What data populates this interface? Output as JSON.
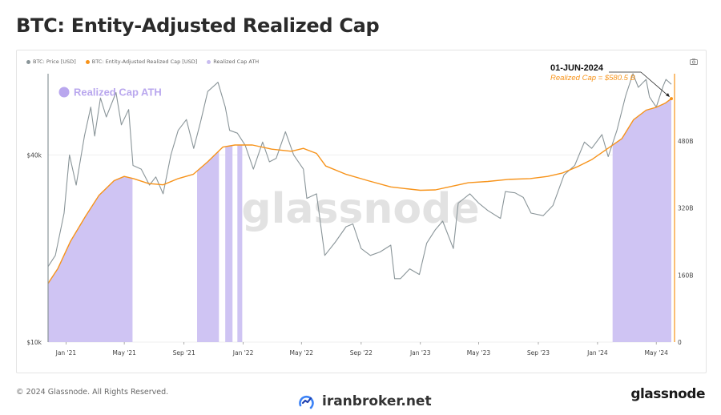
{
  "header": {
    "title": "BTC: Entity-Adjusted Realized Cap"
  },
  "chart_data": {
    "type": "line",
    "title": "BTC: Entity-Adjusted Realized Cap",
    "legend": [
      {
        "name": "BTC: Price [USD]",
        "color": "#8a9599"
      },
      {
        "name": "BTC: Entity-Adjusted Realized Cap [USD]",
        "color": "#f7931a"
      },
      {
        "name": "Realized Cap ATH",
        "color": "#c9bdf0"
      }
    ],
    "x_ticks": [
      "Jan '21",
      "May '21",
      "Sep '21",
      "Jan '22",
      "May '22",
      "Sep '22",
      "Jan '23",
      "May '23",
      "Sep '23",
      "Jan '24",
      "May '24"
    ],
    "x_range": [
      "2020-11-25",
      "2024-06-01"
    ],
    "left_axis": {
      "scale": "log",
      "range": [
        10000,
        73000
      ],
      "ticks": [
        {
          "value": 40000,
          "label": "$40k"
        },
        {
          "value": 10000,
          "label": "$10k"
        }
      ]
    },
    "right_axis": {
      "range_billion": [
        0,
        640
      ],
      "ticks": [
        {
          "value": 480,
          "label": "480B"
        },
        {
          "value": 320,
          "label": "320B"
        },
        {
          "value": 160,
          "label": "160B"
        },
        {
          "value": 0,
          "label": "0"
        }
      ]
    },
    "series": [
      {
        "name": "BTC: Price [USD]",
        "x": [
          "2020-11-25",
          "2020-12-10",
          "2020-12-28",
          "2021-01-08",
          "2021-01-22",
          "2021-02-08",
          "2021-02-21",
          "2021-03-01",
          "2021-03-13",
          "2021-03-25",
          "2021-04-14",
          "2021-04-25",
          "2021-05-10",
          "2021-05-19",
          "2021-06-05",
          "2021-06-22",
          "2021-07-05",
          "2021-07-20",
          "2021-08-05",
          "2021-08-20",
          "2021-09-06",
          "2021-09-21",
          "2021-10-05",
          "2021-10-20",
          "2021-11-10",
          "2021-11-25",
          "2021-12-04",
          "2021-12-20",
          "2022-01-05",
          "2022-01-22",
          "2022-02-10",
          "2022-02-24",
          "2022-03-10",
          "2022-03-29",
          "2022-04-15",
          "2022-05-05",
          "2022-05-12",
          "2022-06-01",
          "2022-06-18",
          "2022-07-10",
          "2022-08-01",
          "2022-08-15",
          "2022-09-01",
          "2022-09-20",
          "2022-10-10",
          "2022-11-01",
          "2022-11-09",
          "2022-11-21",
          "2022-12-10",
          "2022-12-30",
          "2023-01-14",
          "2023-02-01",
          "2023-02-16",
          "2023-03-10",
          "2023-03-20",
          "2023-04-13",
          "2023-05-01",
          "2023-05-20",
          "2023-06-15",
          "2023-06-25",
          "2023-07-15",
          "2023-08-01",
          "2023-08-17",
          "2023-09-11",
          "2023-10-01",
          "2023-10-24",
          "2023-11-15",
          "2023-12-05",
          "2023-12-20",
          "2024-01-10",
          "2024-01-23",
          "2024-02-10",
          "2024-02-28",
          "2024-03-14",
          "2024-03-25",
          "2024-04-10",
          "2024-04-17",
          "2024-05-01",
          "2024-05-15",
          "2024-05-21",
          "2024-06-01"
        ],
        "values": [
          17500,
          19000,
          26000,
          40000,
          32000,
          46000,
          57000,
          46000,
          61000,
          53000,
          63500,
          50000,
          56000,
          37000,
          36000,
          32000,
          34000,
          30000,
          40000,
          48000,
          52000,
          42000,
          51000,
          64000,
          68500,
          57000,
          48000,
          47000,
          43000,
          36000,
          44000,
          38000,
          39000,
          47500,
          40000,
          36000,
          29000,
          30000,
          19000,
          21000,
          23500,
          24000,
          20000,
          19000,
          19500,
          20500,
          16000,
          16000,
          17200,
          16500,
          20800,
          23000,
          24500,
          20000,
          28000,
          30000,
          28000,
          26500,
          25000,
          30500,
          30200,
          29200,
          26000,
          25500,
          27500,
          34500,
          37000,
          44000,
          42000,
          46500,
          39500,
          48000,
          62000,
          73000,
          66000,
          70000,
          61500,
          57000,
          66500,
          70000,
          67500
        ]
      },
      {
        "name": "BTC: Entity-Adjusted Realized Cap [USD]",
        "unit": "billion USD",
        "x": [
          "2020-11-25",
          "2020-12-15",
          "2021-01-10",
          "2021-02-10",
          "2021-03-10",
          "2021-04-10",
          "2021-05-01",
          "2021-05-20",
          "2021-06-20",
          "2021-07-20",
          "2021-08-20",
          "2021-09-20",
          "2021-10-20",
          "2021-11-20",
          "2021-12-15",
          "2022-01-20",
          "2022-03-01",
          "2022-04-10",
          "2022-05-05",
          "2022-06-01",
          "2022-06-20",
          "2022-08-01",
          "2022-09-15",
          "2022-11-01",
          "2022-12-01",
          "2023-01-01",
          "2023-02-01",
          "2023-03-01",
          "2023-04-10",
          "2023-05-20",
          "2023-07-01",
          "2023-08-15",
          "2023-09-20",
          "2023-10-20",
          "2023-11-20",
          "2023-12-20",
          "2024-01-20",
          "2024-02-20",
          "2024-03-15",
          "2024-04-10",
          "2024-05-01",
          "2024-05-20",
          "2024-06-01"
        ],
        "values": [
          140,
          175,
          240,
          300,
          350,
          385,
          395,
          390,
          378,
          375,
          390,
          400,
          430,
          465,
          470,
          470,
          460,
          455,
          462,
          450,
          420,
          400,
          385,
          370,
          366,
          362,
          363,
          370,
          380,
          383,
          388,
          390,
          395,
          403,
          418,
          435,
          460,
          485,
          530,
          553,
          560,
          570,
          580.5
        ]
      }
    ],
    "ath_periods": [
      [
        "2020-11-25",
        "2021-05-18"
      ],
      [
        "2021-09-28",
        "2021-11-12"
      ],
      [
        "2021-11-25",
        "2021-12-10"
      ],
      [
        "2021-12-20",
        "2021-12-30"
      ],
      [
        "2024-02-01",
        "2024-06-01"
      ]
    ],
    "annotation": {
      "date_label": "01-JUN-2024",
      "value_label": "Realized Cap = $580.5 B",
      "x": "2024-06-01",
      "value_billion": 580.5
    },
    "ath_badge": "Realized Cap ATH",
    "watermark": "glassnode"
  },
  "footer": {
    "copyright": "© 2024 Glassnode. All Rights Reserved.",
    "brand_center": "iranbroker.net",
    "brand_right": "glassnode"
  }
}
